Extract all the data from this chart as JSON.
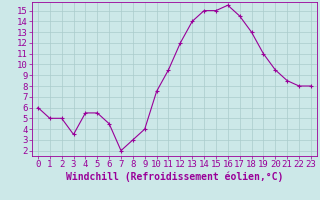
{
  "x": [
    0,
    1,
    2,
    3,
    4,
    5,
    6,
    7,
    8,
    9,
    10,
    11,
    12,
    13,
    14,
    15,
    16,
    17,
    18,
    19,
    20,
    21,
    22,
    23
  ],
  "y": [
    6,
    5,
    5,
    3.5,
    5.5,
    5.5,
    4.5,
    2,
    3,
    4,
    7.5,
    9.5,
    12,
    14,
    15,
    15,
    15.5,
    14.5,
    13,
    11,
    9.5,
    8.5,
    8,
    8
  ],
  "line_color": "#990099",
  "marker": "+",
  "marker_size": 3,
  "bg_color": "#cce8e8",
  "grid_color": "#aacccc",
  "xlabel": "Windchill (Refroidissement éolien,°C)",
  "xlabel_color": "#990099",
  "xlim": [
    -0.5,
    23.5
  ],
  "ylim": [
    1.5,
    15.8
  ],
  "yticks": [
    2,
    3,
    4,
    5,
    6,
    7,
    8,
    9,
    10,
    11,
    12,
    13,
    14,
    15
  ],
  "xticks": [
    0,
    1,
    2,
    3,
    4,
    5,
    6,
    7,
    8,
    9,
    10,
    11,
    12,
    13,
    14,
    15,
    16,
    17,
    18,
    19,
    20,
    21,
    22,
    23
  ],
  "tick_color": "#990099",
  "axis_color": "#990099",
  "font_size": 6.5,
  "xlabel_font_size": 7
}
